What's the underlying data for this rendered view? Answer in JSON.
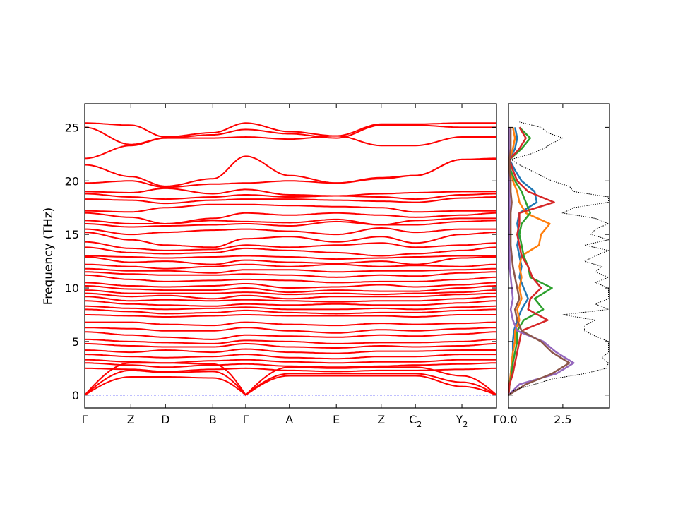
{
  "chart_data": [
    {
      "type": "line",
      "ylabel": "Frequency (THz)",
      "ylim": [
        -1.2,
        27.2
      ],
      "yticks": [
        0,
        5,
        10,
        15,
        20,
        25
      ],
      "ytick_labels": [
        "0",
        "5",
        "10",
        "15",
        "20",
        "25"
      ],
      "grid": false,
      "band_color": "#ff0000",
      "zero_line_color": "#0000ff",
      "high_symmetry_points": [
        "Γ",
        "Z",
        "D",
        "B",
        "Γ",
        "A",
        "E",
        "Z",
        "C2",
        "Y2",
        "Γ"
      ],
      "xtick_labels": [
        {
          "main": "Γ",
          "sub": ""
        },
        {
          "main": "Z",
          "sub": ""
        },
        {
          "main": "D",
          "sub": ""
        },
        {
          "main": "B",
          "sub": ""
        },
        {
          "main": "Γ",
          "sub": ""
        },
        {
          "main": "A",
          "sub": ""
        },
        {
          "main": "E",
          "sub": ""
        },
        {
          "main": "Z",
          "sub": ""
        },
        {
          "main": "C",
          "sub": "2"
        },
        {
          "main": "Y",
          "sub": "2"
        },
        {
          "main": "Γ",
          "sub": ""
        }
      ],
      "path_distance": [
        0,
        0.112,
        0.196,
        0.311,
        0.391,
        0.497,
        0.611,
        0.72,
        0.803,
        0.916,
        1.0
      ],
      "bands": [
        [
          25.4,
          25.2,
          24.1,
          24.5,
          25.4,
          24.6,
          24.2,
          25.3,
          25.3,
          25.4,
          25.4
        ],
        [
          25.0,
          23.4,
          24.0,
          24.3,
          24.8,
          24.4,
          24.0,
          25.2,
          25.2,
          25.0,
          25.0
        ],
        [
          22.1,
          23.3,
          24.0,
          24.0,
          24.1,
          23.9,
          24.2,
          23.3,
          23.3,
          24.1,
          24.1
        ],
        [
          21.5,
          20.4,
          19.5,
          20.2,
          22.3,
          20.5,
          19.8,
          20.3,
          20.5,
          22.0,
          22.1
        ],
        [
          19.8,
          20.0,
          19.4,
          19.7,
          19.8,
          20.0,
          19.8,
          20.2,
          20.5,
          22.0,
          22.0
        ],
        [
          19.0,
          18.9,
          19.3,
          18.8,
          19.2,
          18.7,
          18.6,
          18.8,
          18.9,
          19.0,
          19.0
        ],
        [
          18.8,
          18.5,
          18.3,
          18.5,
          18.7,
          18.5,
          18.6,
          18.5,
          18.3,
          18.7,
          18.8
        ],
        [
          18.3,
          18.2,
          17.9,
          18.2,
          18.3,
          18.3,
          18.2,
          18.1,
          18.0,
          18.4,
          18.5
        ],
        [
          17.2,
          17.1,
          17.5,
          17.8,
          17.8,
          17.7,
          17.6,
          17.5,
          17.1,
          17.2,
          17.2
        ],
        [
          17.0,
          16.6,
          16.0,
          16.5,
          17.0,
          16.8,
          17.0,
          16.8,
          16.6,
          16.8,
          17.0
        ],
        [
          16.3,
          16.0,
          16.0,
          16.3,
          16.2,
          16.1,
          16.4,
          15.9,
          16.3,
          16.5,
          16.5
        ],
        [
          16.0,
          15.7,
          15.8,
          15.9,
          16.0,
          15.8,
          16.2,
          15.9,
          15.9,
          16.2,
          16.3
        ],
        [
          15.5,
          15.0,
          15.2,
          15.4,
          15.5,
          15.3,
          15.0,
          15.6,
          15.2,
          15.5,
          15.5
        ],
        [
          15.2,
          14.5,
          14.0,
          13.8,
          14.6,
          14.8,
          14.3,
          14.8,
          14.2,
          15.0,
          15.2
        ],
        [
          14.3,
          13.7,
          13.5,
          13.6,
          14.0,
          13.8,
          14.0,
          14.2,
          13.8,
          14.0,
          14.2
        ],
        [
          13.8,
          13.3,
          13.2,
          13.3,
          13.7,
          13.5,
          13.3,
          13.0,
          13.2,
          13.5,
          13.8
        ],
        [
          13.0,
          12.9,
          12.8,
          12.9,
          13.0,
          12.9,
          12.7,
          12.8,
          12.9,
          13.0,
          13.0
        ],
        [
          12.9,
          12.4,
          12.5,
          12.2,
          12.6,
          12.4,
          12.3,
          12.5,
          12.2,
          12.8,
          12.9
        ],
        [
          12.2,
          12.0,
          11.8,
          12.0,
          12.2,
          12.0,
          12.2,
          12.0,
          12.1,
          12.0,
          12.2
        ],
        [
          11.8,
          11.6,
          11.6,
          11.4,
          11.7,
          11.7,
          11.5,
          11.6,
          11.6,
          11.7,
          11.8
        ],
        [
          11.5,
          11.3,
          11.2,
          11.2,
          11.3,
          11.2,
          11.0,
          11.2,
          11.1,
          11.4,
          11.5
        ],
        [
          11.2,
          10.8,
          10.6,
          10.7,
          10.8,
          10.7,
          10.5,
          10.6,
          10.6,
          10.8,
          11.0
        ],
        [
          10.5,
          10.2,
          10.1,
          10.2,
          10.4,
          10.0,
          10.1,
          10.3,
          10.1,
          10.3,
          10.5
        ],
        [
          10.2,
          9.9,
          9.8,
          9.8,
          10.0,
          9.6,
          9.8,
          9.7,
          9.7,
          10.0,
          10.2
        ],
        [
          9.8,
          9.5,
          9.5,
          9.5,
          9.6,
          9.4,
          9.5,
          9.4,
          9.5,
          9.6,
          9.8
        ],
        [
          9.5,
          9.2,
          9.3,
          9.0,
          9.3,
          9.0,
          9.2,
          9.2,
          9.2,
          9.4,
          9.5
        ],
        [
          9.2,
          8.8,
          8.9,
          8.8,
          8.9,
          8.8,
          8.7,
          8.8,
          8.8,
          9.0,
          9.2
        ],
        [
          8.8,
          8.5,
          8.4,
          8.3,
          8.5,
          8.4,
          8.5,
          8.4,
          8.4,
          8.6,
          8.8
        ],
        [
          8.3,
          8.1,
          8.0,
          8.1,
          8.2,
          8.0,
          8.0,
          8.1,
          8.0,
          8.2,
          8.3
        ],
        [
          8.0,
          7.8,
          7.6,
          7.7,
          7.9,
          7.7,
          7.6,
          7.7,
          7.7,
          7.9,
          8.0
        ],
        [
          7.5,
          7.4,
          7.3,
          7.4,
          7.5,
          7.4,
          7.4,
          7.4,
          7.3,
          7.5,
          7.5
        ],
        [
          6.8,
          6.8,
          6.6,
          6.5,
          6.8,
          6.6,
          6.5,
          6.7,
          6.6,
          6.7,
          6.8
        ],
        [
          6.3,
          6.2,
          6.0,
          6.0,
          6.3,
          6.0,
          5.8,
          6.1,
          6.0,
          6.2,
          6.3
        ],
        [
          5.9,
          5.6,
          5.4,
          5.2,
          5.6,
          5.5,
          5.4,
          5.6,
          5.5,
          5.7,
          5.9
        ],
        [
          5.2,
          5.0,
          4.9,
          4.8,
          5.1,
          5.0,
          4.8,
          4.9,
          4.9,
          5.0,
          5.2
        ],
        [
          4.8,
          4.6,
          4.5,
          4.5,
          4.8,
          4.5,
          4.4,
          4.6,
          4.5,
          4.6,
          4.8
        ],
        [
          4.2,
          4.0,
          4.2,
          4.0,
          4.3,
          4.0,
          3.9,
          4.1,
          4.1,
          4.2,
          4.2
        ],
        [
          3.8,
          3.6,
          3.5,
          3.6,
          3.8,
          3.5,
          3.4,
          3.6,
          3.6,
          3.8,
          3.8
        ],
        [
          3.3,
          3.1,
          3.0,
          3.2,
          3.3,
          3.1,
          3.0,
          3.1,
          3.1,
          3.3,
          3.3
        ],
        [
          3.0,
          2.8,
          2.6,
          2.8,
          2.9,
          2.7,
          2.6,
          2.7,
          2.8,
          2.9,
          3.0
        ],
        [
          2.5,
          2.4,
          2.2,
          2.4,
          2.5,
          2.3,
          2.2,
          2.3,
          2.3,
          2.4,
          2.5
        ],
        [
          0,
          3.0,
          3.0,
          2.9,
          0,
          2.6,
          2.5,
          2.6,
          2.6,
          1.8,
          0
        ],
        [
          0,
          2.3,
          2.1,
          2.2,
          0,
          2.0,
          2.0,
          2.0,
          2.0,
          1.2,
          0
        ],
        [
          0,
          1.7,
          1.7,
          1.6,
          0,
          1.8,
          1.8,
          1.8,
          1.8,
          0.8,
          0
        ]
      ]
    },
    {
      "type": "line",
      "xlim": [
        0,
        4.65
      ],
      "xticks": [
        0.0,
        2.5
      ],
      "xtick_labels": [
        "0.0",
        "2.5"
      ],
      "ylim": [
        -1.2,
        27.2
      ],
      "grid": false,
      "total_dos": {
        "color": "#000000",
        "style": "dotted",
        "frequency": [
          0,
          0.5,
          1,
          1.5,
          2,
          2.5,
          3,
          3.5,
          4,
          4.5,
          5,
          5.5,
          6,
          6.5,
          7,
          7.5,
          8,
          8.5,
          9,
          9.5,
          10,
          10.5,
          11,
          11.5,
          12,
          12.5,
          13,
          13.5,
          14,
          14.5,
          15,
          15.5,
          16,
          16.5,
          17,
          17.5,
          18,
          18.5,
          19,
          19.5,
          20,
          20.5,
          21,
          21.5,
          22,
          22.5,
          23,
          23.5,
          24,
          24.5,
          25,
          25.5
        ],
        "values": [
          0,
          0.3,
          1.2,
          2.0,
          3.5,
          4.5,
          4.6,
          4.3,
          4.6,
          4.6,
          4.6,
          4.0,
          3.5,
          3.5,
          4.0,
          2.5,
          4.6,
          4.0,
          4.6,
          4.6,
          4.6,
          4.0,
          4.6,
          4.0,
          4.3,
          3.5,
          4.0,
          4.6,
          3.5,
          4.6,
          3.8,
          4.0,
          4.6,
          4.0,
          2.5,
          3.0,
          4.6,
          4.6,
          3.0,
          2.8,
          2.0,
          1.5,
          1.0,
          0.5,
          0.1,
          1.0,
          1.6,
          2.0,
          2.5,
          1.8,
          1.5,
          0.5
        ]
      },
      "partial_frequency": [
        0,
        1,
        2,
        3,
        4,
        5,
        6,
        7,
        8,
        9,
        10,
        11,
        12,
        13,
        14,
        15,
        16,
        17,
        18,
        19,
        20,
        21,
        22,
        23,
        24,
        25
      ],
      "partial_dos": [
        {
          "color": "#1f77b4",
          "values": [
            0,
            0.05,
            0.1,
            0.15,
            0.2,
            0.2,
            0.25,
            0.4,
            0.6,
            0.9,
            0.7,
            0.5,
            0.6,
            0.5,
            0.4,
            0.5,
            0.4,
            0.5,
            1.3,
            1.2,
            0.6,
            0.3,
            0.05,
            0.3,
            0.4,
            0.3
          ]
        },
        {
          "color": "#ff7f0e",
          "values": [
            0,
            0.05,
            0.1,
            0.15,
            0.2,
            0.3,
            0.3,
            0.5,
            0.4,
            0.6,
            0.5,
            0.6,
            0.5,
            0.6,
            1.4,
            1.5,
            1.9,
            0.8,
            0.5,
            0.4,
            0.2,
            0.1,
            0.05,
            0.2,
            0.3,
            0.2
          ]
        },
        {
          "color": "#2ca02c",
          "values": [
            0,
            0.05,
            0.15,
            0.2,
            0.3,
            0.4,
            0.4,
            0.7,
            1.6,
            1.2,
            2.0,
            1.0,
            0.9,
            0.7,
            0.6,
            0.5,
            0.6,
            1.0,
            0.8,
            0.6,
            0.3,
            0.1,
            0.05,
            0.6,
            1.0,
            0.5
          ]
        },
        {
          "color": "#d62728",
          "values": [
            0,
            0.05,
            0.2,
            0.3,
            0.4,
            0.5,
            0.6,
            1.8,
            0.9,
            1.0,
            1.5,
            1.1,
            0.9,
            0.6,
            0.5,
            0.4,
            0.5,
            0.5,
            2.1,
            0.9,
            0.4,
            0.2,
            0.05,
            0.5,
            0.8,
            0.5
          ]
        },
        {
          "color": "#9467bd",
          "values": [
            0,
            0.5,
            2.2,
            3.0,
            2.2,
            1.6,
            0.4,
            0.2,
            0.1,
            0.2,
            0.15,
            0.1,
            0.05,
            0.05,
            0.05,
            0.05,
            0.05,
            0.05,
            0.05,
            0.05,
            0.05,
            0.02,
            0.02,
            0.02,
            0.02,
            0.02
          ]
        },
        {
          "color": "#8c564b",
          "values": [
            0,
            0.8,
            2.0,
            2.8,
            2.0,
            1.5,
            0.6,
            0.4,
            0.3,
            0.5,
            0.4,
            0.3,
            0.2,
            0.15,
            0.1,
            0.1,
            0.1,
            0.1,
            0.15,
            0.1,
            0.1,
            0.05,
            0.05,
            0.1,
            0.1,
            0.1
          ]
        }
      ]
    }
  ]
}
